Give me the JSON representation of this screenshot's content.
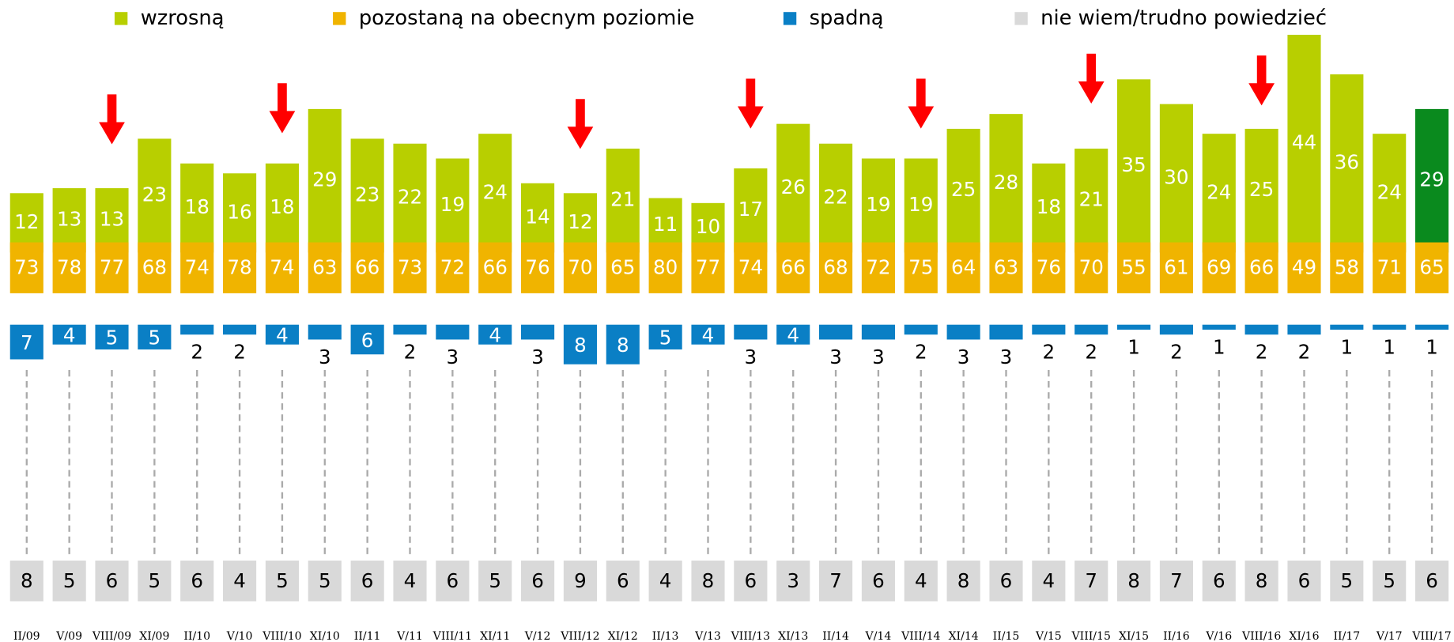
{
  "chart_data": {
    "type": "bar",
    "categories": [
      "II/09",
      "V/09",
      "VIII/09",
      "XI/09",
      "II/10",
      "V/10",
      "VIII/10",
      "XI/10",
      "II/11",
      "V/11",
      "VIII/11",
      "XI/11",
      "V/12",
      "VIII/12",
      "XI/12",
      "II/13",
      "V/13",
      "VIII/13",
      "XI/13",
      "II/14",
      "V/14",
      "VIII/14",
      "XI/14",
      "II/15",
      "V/15",
      "VIII/15",
      "XI/15",
      "II/16",
      "V/16",
      "VIII/16",
      "XI/16",
      "II/17",
      "V/17",
      "VIII/17"
    ],
    "series": [
      {
        "name": "wzrosną",
        "color": "#b8cf00",
        "highlight_color": "#0a8a1e",
        "values": [
          12,
          13,
          13,
          23,
          18,
          16,
          18,
          29,
          23,
          22,
          19,
          24,
          14,
          12,
          21,
          11,
          10,
          17,
          26,
          22,
          19,
          19,
          25,
          28,
          18,
          21,
          35,
          30,
          24,
          25,
          44,
          36,
          24,
          29
        ]
      },
      {
        "name": "pozostaną na obecnym poziomie",
        "color": "#f0b400",
        "values": [
          73,
          78,
          77,
          68,
          74,
          78,
          74,
          63,
          66,
          73,
          72,
          66,
          76,
          70,
          65,
          80,
          77,
          74,
          66,
          68,
          72,
          75,
          64,
          63,
          76,
          70,
          55,
          61,
          69,
          66,
          49,
          58,
          71,
          65
        ]
      },
      {
        "name": "spadną",
        "color": "#0a7fc5",
        "values": [
          7,
          4,
          5,
          5,
          2,
          2,
          4,
          3,
          6,
          2,
          3,
          4,
          3,
          8,
          8,
          5,
          4,
          3,
          4,
          3,
          3,
          2,
          3,
          3,
          2,
          2,
          1,
          2,
          1,
          2,
          2,
          1,
          1,
          1
        ]
      },
      {
        "name": "nie wiem/trudno powiedzieć",
        "color": "#d9d9d9",
        "values": [
          8,
          5,
          6,
          5,
          6,
          4,
          5,
          5,
          6,
          4,
          6,
          5,
          6,
          9,
          6,
          4,
          8,
          6,
          3,
          7,
          6,
          4,
          8,
          6,
          4,
          7,
          8,
          7,
          6,
          8,
          6,
          5,
          5,
          6
        ]
      }
    ]
  }
}
